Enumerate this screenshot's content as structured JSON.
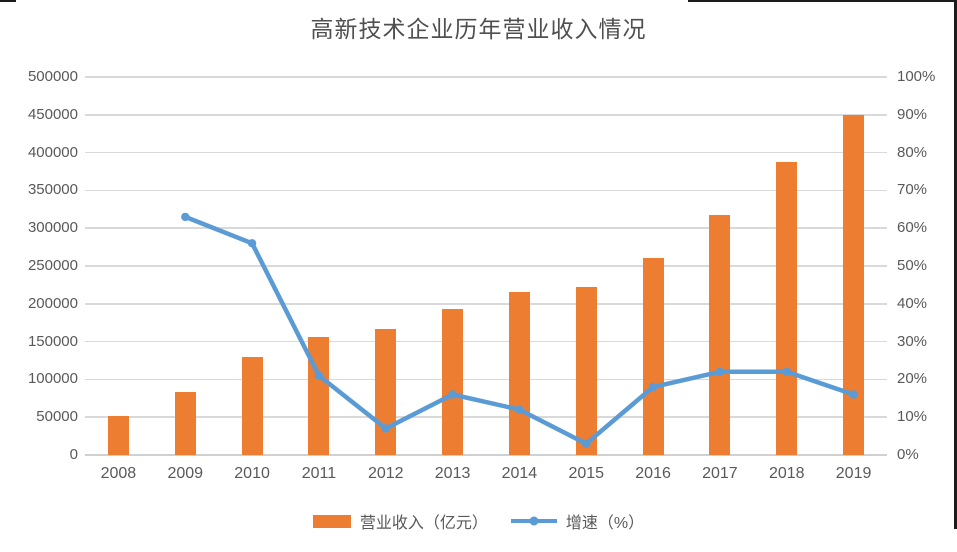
{
  "title": "高新技术企业历年营业收入情况",
  "chart_data": {
    "type": "combo-bar-line",
    "categories": [
      "2008",
      "2009",
      "2010",
      "2011",
      "2012",
      "2013",
      "2014",
      "2015",
      "2016",
      "2017",
      "2018",
      "2019"
    ],
    "series": [
      {
        "name": "营业收入（亿元）",
        "type": "bar",
        "axis": "left",
        "color": "#ED7D31",
        "values": [
          51000,
          83000,
          130000,
          156000,
          167000,
          193000,
          216000,
          222000,
          260000,
          317000,
          388000,
          450000
        ]
      },
      {
        "name": "增速（%）",
        "type": "line",
        "axis": "right",
        "color": "#5B9BD5",
        "values": [
          null,
          63,
          56,
          21,
          7,
          16,
          12,
          3,
          18,
          22,
          22,
          16
        ]
      }
    ],
    "left_axis": {
      "min": 0,
      "max": 500000,
      "step": 50000,
      "tick_labels": [
        "500000",
        "450000",
        "400000",
        "350000",
        "300000",
        "250000",
        "200000",
        "150000",
        "100000",
        "50000",
        "0"
      ]
    },
    "right_axis": {
      "min": 0,
      "max": 100,
      "step": 10,
      "tick_labels": [
        "100%",
        "90%",
        "80%",
        "70%",
        "60%",
        "50%",
        "40%",
        "30%",
        "20%",
        "10%",
        "0%"
      ]
    },
    "grid": true,
    "legend_position": "bottom"
  },
  "legend": {
    "revenue_label": "营业收入（亿元）",
    "growth_label": "增速（%）"
  },
  "colors": {
    "bar": "#ED7D31",
    "line": "#5B9BD5",
    "grid": "#D9D9D9",
    "axis_text": "#595959",
    "title_text": "#4F4F4F",
    "background": "#FFFFFF"
  }
}
